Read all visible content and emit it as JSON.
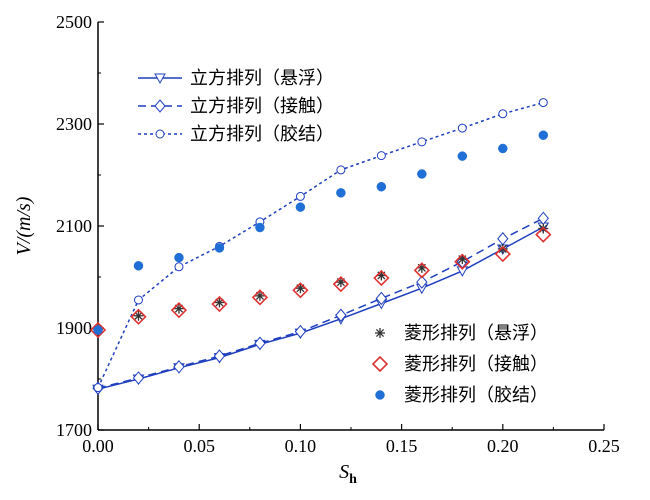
{
  "chart_data": {
    "type": "scatter",
    "title": "",
    "xlabel": "S",
    "xlabel_sub": "h",
    "ylabel": "V/(m/s)",
    "xlim": [
      0,
      0.25
    ],
    "ylim": [
      1700,
      2500
    ],
    "xticks": [
      "0.00",
      "0.05",
      "0.10",
      "0.15",
      "0.20",
      "0.25"
    ],
    "xtick_values": [
      0,
      0.05,
      0.1,
      0.15,
      0.2,
      0.25
    ],
    "yticks": [
      "1700",
      "1900",
      "2100",
      "2300",
      "2500"
    ],
    "ytick_values": [
      1700,
      1900,
      2100,
      2300,
      2500
    ],
    "grid": false,
    "series": [
      {
        "name": "立方排列（悬浮）",
        "style": "solid-line",
        "marker": "triangle-down",
        "color": "#1f3fbf",
        "x": [
          0,
          0.02,
          0.04,
          0.06,
          0.08,
          0.1,
          0.12,
          0.14,
          0.16,
          0.18,
          0.2,
          0.22
        ],
        "y": [
          1780,
          1800,
          1822,
          1842,
          1868,
          1890,
          1918,
          1948,
          1978,
          2012,
          2055,
          2098
        ]
      },
      {
        "name": "立方排列（接触）",
        "style": "dashed-line",
        "marker": "diamond",
        "color": "#1f3fbf",
        "x": [
          0,
          0.02,
          0.04,
          0.06,
          0.08,
          0.1,
          0.12,
          0.14,
          0.16,
          0.18,
          0.2,
          0.22
        ],
        "y": [
          1782,
          1802,
          1824,
          1845,
          1870,
          1893,
          1925,
          1958,
          1990,
          2030,
          2075,
          2115
        ]
      },
      {
        "name": "立方排列（胶结）",
        "style": "dotted-line",
        "marker": "circle-open",
        "color": "#1f3fbf",
        "x": [
          0,
          0.02,
          0.04,
          0.06,
          0.08,
          0.1,
          0.12,
          0.14,
          0.16,
          0.18,
          0.2,
          0.22
        ],
        "y": [
          1783,
          1955,
          2020,
          2060,
          2108,
          2158,
          2210,
          2238,
          2265,
          2292,
          2320,
          2342
        ]
      },
      {
        "name": "菱形排列（悬浮）",
        "style": "markers",
        "marker": "star",
        "color": "#333333",
        "x": [
          0,
          0.02,
          0.04,
          0.06,
          0.08,
          0.1,
          0.12,
          0.14,
          0.16,
          0.18,
          0.2,
          0.22
        ],
        "y": [
          1898,
          1924,
          1938,
          1950,
          1963,
          1978,
          1990,
          2003,
          2018,
          2035,
          2055,
          2095
        ]
      },
      {
        "name": "菱形排列（接触）",
        "style": "markers",
        "marker": "diamond-open",
        "color": "#e03030",
        "x": [
          0,
          0.02,
          0.04,
          0.06,
          0.08,
          0.1,
          0.12,
          0.14,
          0.16,
          0.18,
          0.2,
          0.22
        ],
        "y": [
          1896,
          1922,
          1935,
          1947,
          1960,
          1974,
          1986,
          1998,
          2013,
          2030,
          2045,
          2083
        ]
      },
      {
        "name": "菱形排列（胶结）",
        "style": "markers",
        "marker": "circle-filled",
        "color": "#1f6fd6",
        "x": [
          0,
          0.02,
          0.04,
          0.06,
          0.08,
          0.1,
          0.12,
          0.14,
          0.16,
          0.18,
          0.2,
          0.22
        ],
        "y": [
          1896,
          2022,
          2038,
          2057,
          2097,
          2137,
          2165,
          2177,
          2202,
          2237,
          2252,
          2278
        ]
      }
    ],
    "legend": [
      {
        "position": "top-left",
        "series_index": [
          0,
          1,
          2
        ]
      },
      {
        "position": "bottom-right",
        "series_index": [
          3,
          4,
          5
        ]
      }
    ]
  }
}
